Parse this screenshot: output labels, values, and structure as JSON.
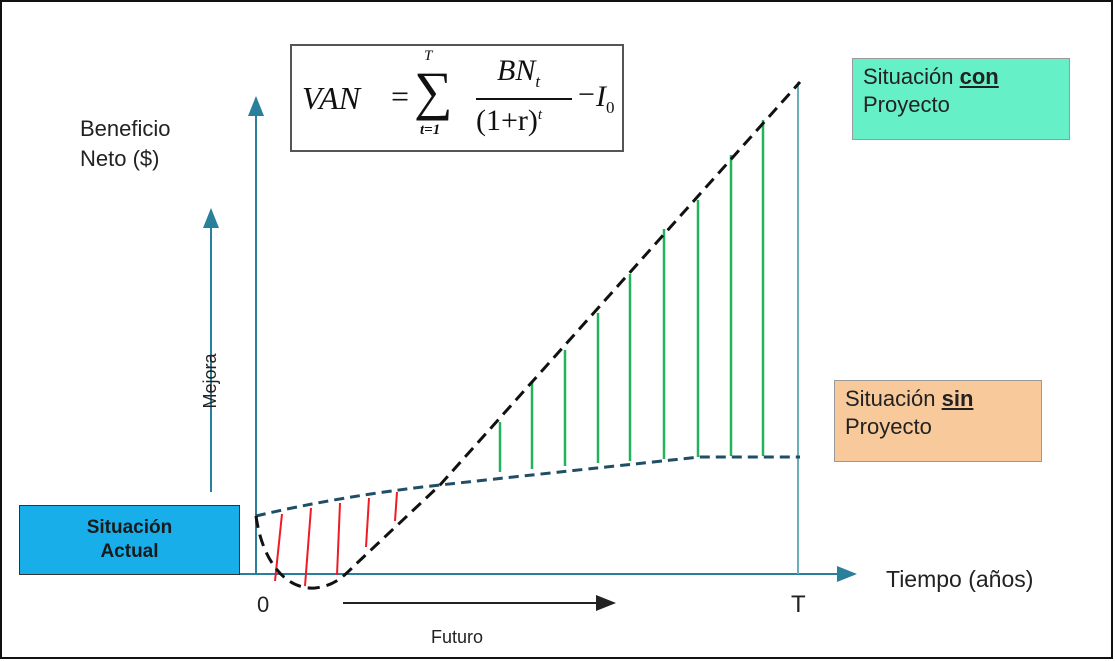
{
  "axes": {
    "y_label_line1": "Beneficio",
    "y_label_line2": "Neto ($)",
    "x_label": "Tiempo (años)",
    "origin_label": "0",
    "end_label": "T"
  },
  "arrows": {
    "mejora_label": "Mejora",
    "futuro_label": "Futuro"
  },
  "formula": {
    "lhs": "VAN",
    "equals": "=",
    "sum_upper": "T",
    "sum_lower": "t=1",
    "numerator": "BN",
    "numerator_sub": "t",
    "denominator": "(1+r)",
    "denominator_sup": "t",
    "minus": "−",
    "investment": "I",
    "investment_sub": "0"
  },
  "boxes": {
    "con": {
      "line1_prefix": "Situación ",
      "line1_emph": "con",
      "line2": "Proyecto",
      "color": "#66f0c8"
    },
    "sin": {
      "line1_prefix": "Situación ",
      "line1_emph": "sin",
      "line2": "Proyecto",
      "color": "#f8c99b"
    },
    "actual": {
      "line1": "Situación",
      "line2": "Actual",
      "color": "#18aeea"
    }
  },
  "colors": {
    "axis": "#2a7f9a",
    "dashed_curve": "#111111",
    "sin_curve": "#1f4e66",
    "benefit_lines": "#22b35c",
    "loss_lines": "#ee1c24"
  }
}
